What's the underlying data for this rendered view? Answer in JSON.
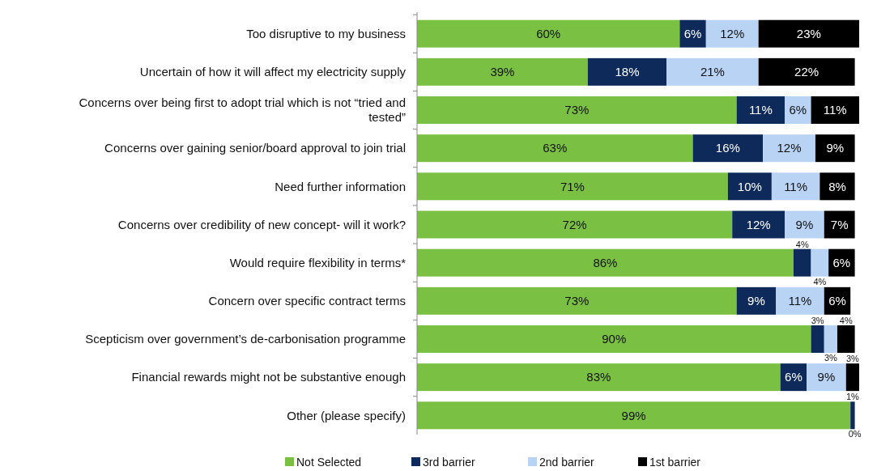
{
  "chart_data": {
    "type": "bar",
    "orientation": "horizontal",
    "stacked": true,
    "legend": "bottom",
    "xlim": [
      0,
      101
    ],
    "tick_labels": "y",
    "categories": [
      "Too disruptive to my business",
      "Uncertain of how it will affect my electricity supply",
      "Concerns over being first to adopt trial which is not “tried and tested”",
      "Concerns over gaining senior/board approval to join trial",
      "Need further information",
      "Concerns over credibility of new concept- will it work?",
      "Would require flexibility in terms*",
      "Concern over specific contract terms",
      "Scepticism over government’s de-carbonisation programme",
      "Financial rewards might not be substantive enough",
      "Other (please specify)"
    ],
    "series": [
      {
        "name": "Not Selected",
        "color": "#7ac043",
        "values": [
          60,
          39,
          73,
          63,
          71,
          72,
          86,
          73,
          90,
          83,
          99
        ],
        "value_labels": [
          "60%",
          "39%",
          "73%",
          "63%",
          "71%",
          "72%",
          "86%",
          "73%",
          "90%",
          "83%",
          "99%"
        ]
      },
      {
        "name": "3rd barrier",
        "color": "#0e2a5a",
        "values": [
          6,
          18,
          11,
          16,
          10,
          12,
          4,
          9,
          3,
          6,
          1
        ],
        "value_labels": [
          "6%",
          "18%",
          "11%",
          "16%",
          "10%",
          "12%",
          "4%",
          "9%",
          "3%",
          "6%",
          "1%"
        ]
      },
      {
        "name": "2nd barrier",
        "color": "#b8d3f4",
        "values": [
          12,
          21,
          6,
          12,
          11,
          9,
          4,
          11,
          3,
          9,
          0
        ],
        "value_labels": [
          "12%",
          "21%",
          "6%",
          "12%",
          "11%",
          "9%",
          "4%",
          "11%",
          "3%",
          "9%",
          "0%"
        ]
      },
      {
        "name": "1st barrier",
        "color": "#000000",
        "values": [
          23,
          22,
          11,
          9,
          8,
          7,
          6,
          6,
          4,
          3,
          0
        ],
        "value_labels": [
          "23%",
          "22%",
          "11%",
          "9%",
          "8%",
          "7%",
          "6%",
          "6%",
          "4%",
          "3%",
          null
        ]
      }
    ]
  }
}
